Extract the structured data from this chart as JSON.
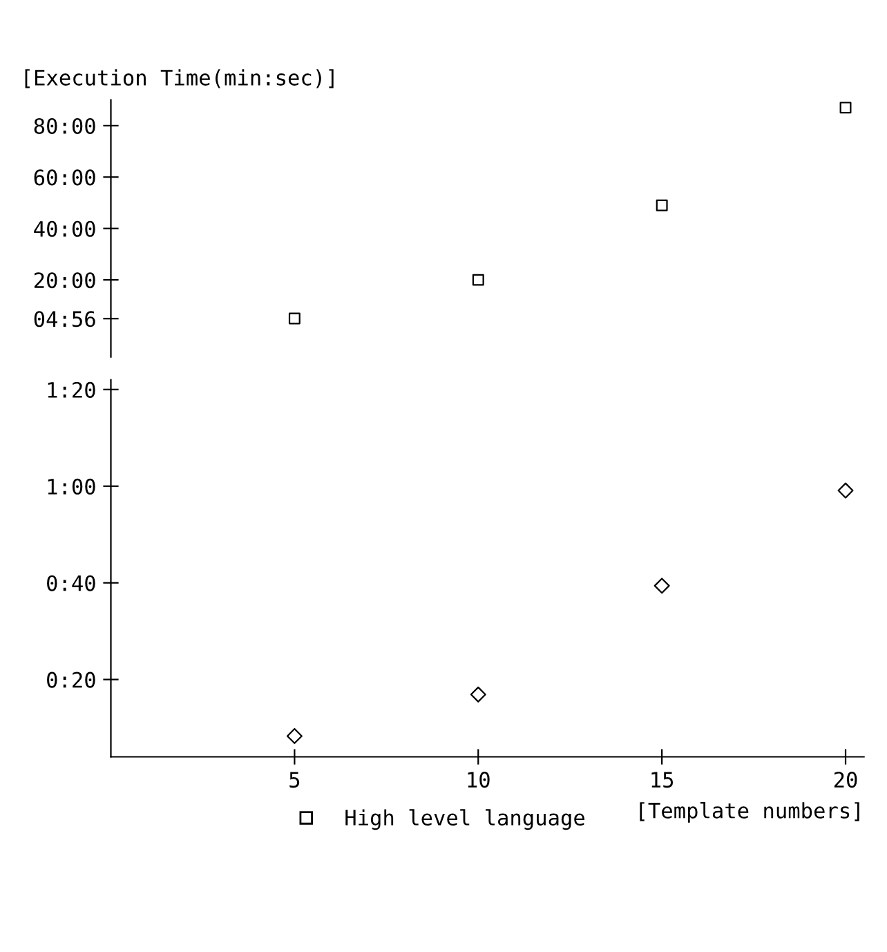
{
  "chart_data": [
    {
      "type": "scatter",
      "ylabel": "[Execution Time(min:sec)]",
      "x": [
        5,
        10,
        15,
        20
      ],
      "ylim": [
        -10,
        90
      ],
      "yticks": [
        {
          "value": 4.93,
          "label": "04:56"
        },
        {
          "value": 20,
          "label": "20:00"
        },
        {
          "value": 40,
          "label": "40:00"
        },
        {
          "value": 60,
          "label": "60:00"
        },
        {
          "value": 80,
          "label": "80:00"
        }
      ],
      "tick_labels": "y",
      "legend": "bottom left",
      "series": [
        {
          "name": "High level language",
          "color": "#000000",
          "marker": "square",
          "values": [
            5,
            20,
            49,
            87
          ]
        }
      ]
    },
    {
      "type": "scatter",
      "xlabel": "[Template numbers]",
      "x": [
        5,
        10,
        15,
        20
      ],
      "xlim": [
        0,
        20.5
      ],
      "xticks": [
        5,
        10,
        15,
        20
      ],
      "ylim": [
        4,
        82
      ],
      "yticks": [
        {
          "value": 20,
          "label": "0:20"
        },
        {
          "value": 40,
          "label": "0:40"
        },
        {
          "value": 60,
          "label": "1:00"
        },
        {
          "value": 80,
          "label": "1:20"
        }
      ],
      "series": [
        {
          "color": "#000000",
          "marker": "diamond",
          "values": [
            8.3,
            16.9,
            39.4,
            59.1
          ]
        }
      ]
    }
  ]
}
